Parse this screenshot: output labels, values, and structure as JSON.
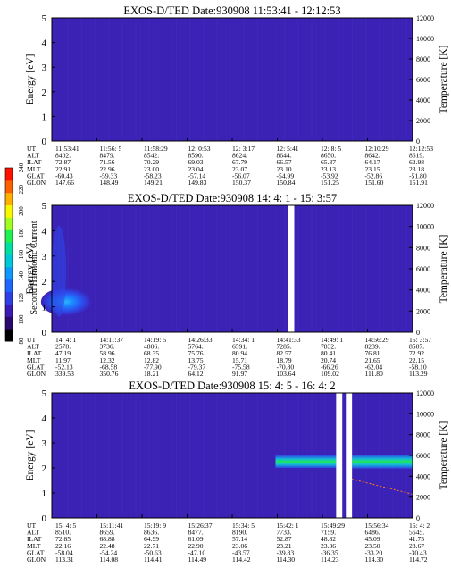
{
  "colorbar": {
    "label": "Second Harmonic Current",
    "ticks": [
      "80",
      "100",
      "120",
      "140",
      "160",
      "180",
      "200",
      "220",
      "240"
    ],
    "colors": [
      "#000000",
      "#2a0a6e",
      "#3b1bb6",
      "#2f3fe6",
      "#1d66ff",
      "#0f99ff",
      "#00c8d8",
      "#00e0a0",
      "#20f050",
      "#a0ff20",
      "#f8f800",
      "#ffb000",
      "#ff6000",
      "#ff1000"
    ]
  },
  "chart_data": [
    {
      "type": "heatmap",
      "title": "EXOS-D/TED   Date:930908   11:53:41 - 12:12:53",
      "ylabel": "Energy [eV]",
      "y2label": "Temperature [K]",
      "ylim": [
        0,
        5
      ],
      "y2lim": [
        0,
        12000
      ],
      "yticks": [
        "0",
        "1",
        "2",
        "3",
        "4",
        "5"
      ],
      "y2ticks": [
        "0",
        "2000",
        "4000",
        "6000",
        "8000",
        "10000",
        "12000"
      ],
      "background": "#3b22b5",
      "gaps": [],
      "features": [],
      "table": [
        {
          "label": "UT",
          "values": [
            "11:53:41",
            "11:56: 5",
            "11:58:29",
            "12: 0:53",
            "12: 3:17",
            "12: 5:41",
            "12: 8: 5",
            "12:10:29",
            "12:12:53"
          ]
        },
        {
          "label": "ALT",
          "values": [
            "8402.",
            "8479.",
            "8542.",
            "8590.",
            "8624.",
            "8644.",
            "8650.",
            "8642.",
            "8619."
          ]
        },
        {
          "label": "ILAT",
          "values": [
            "72.87",
            "71.56",
            "70.29",
            "69.03",
            "67.79",
            "66.57",
            "65.37",
            "64.17",
            "62.98"
          ]
        },
        {
          "label": "MLT",
          "values": [
            "22.91",
            "22.96",
            "23.00",
            "23.04",
            "23.07",
            "23.10",
            "23.13",
            "23.15",
            "23.18"
          ]
        },
        {
          "label": "GLAT",
          "values": [
            "-60.43",
            "-59.33",
            "-58.23",
            "-57.14",
            "-56.07",
            "-54.99",
            "-53.92",
            "-52.86",
            "-51.80"
          ]
        },
        {
          "label": "GLON",
          "values": [
            "147.66",
            "148.49",
            "149.21",
            "149.83",
            "150.37",
            "150.84",
            "151.25",
            "151.60",
            "151.91"
          ]
        }
      ]
    },
    {
      "type": "heatmap",
      "title": "EXOS-D/TED   Date:930908   14: 4: 1 - 15: 3:57",
      "ylabel": "Energy [eV]",
      "y2label": "Temperature [K]",
      "ylim": [
        0,
        5
      ],
      "y2lim": [
        0,
        12000
      ],
      "yticks": [
        "0",
        "1",
        "2",
        "3",
        "4",
        "5"
      ],
      "y2ticks": [
        "0",
        "2000",
        "4000",
        "6000",
        "8000",
        "10000",
        "12000"
      ],
      "background": "#3b22b5",
      "gaps": [
        [
          0.655,
          0.672
        ]
      ],
      "features": [
        {
          "kind": "blob",
          "x": 0.04,
          "y": 1.2,
          "rx": 0.07,
          "ry": 0.55
        },
        {
          "kind": "tail",
          "x": 0.02,
          "y": 2.4,
          "rx": 0.02,
          "ry": 1.8
        }
      ],
      "table": [
        {
          "label": "UT",
          "values": [
            "14: 4: 1",
            "14:11:37",
            "14:19: 5",
            "14:26:33",
            "14:34: 1",
            "14:41:33",
            "14:49: 1",
            "14:56:29",
            "15: 3:57"
          ]
        },
        {
          "label": "ALT",
          "values": [
            "2578.",
            "3736.",
            "4806.",
            "5764.",
            "6591.",
            "7285.",
            "7832.",
            "8239.",
            "8507."
          ]
        },
        {
          "label": "ILAT",
          "values": [
            "47.19",
            "58.96",
            "68.35",
            "75.76",
            "80.94",
            "82.57",
            "80.41",
            "76.81",
            "72.92"
          ]
        },
        {
          "label": "MLT",
          "values": [
            "11.97",
            "12.32",
            "12.82",
            "13.75",
            "15.71",
            "18.79",
            "20.74",
            "21.65",
            "22.15"
          ]
        },
        {
          "label": "GLAT",
          "values": [
            "-52.13",
            "-68.58",
            "-77.90",
            "-79.37",
            "-75.58",
            "-70.80",
            "-66.26",
            "-62.04",
            "-58.10"
          ]
        },
        {
          "label": "GLON",
          "values": [
            "339.53",
            "350.76",
            "18.21",
            "64.12",
            "91.97",
            "103.64",
            "109.02",
            "111.80",
            "113.29"
          ]
        }
      ]
    },
    {
      "type": "heatmap",
      "title": "EXOS-D/TED   Date:930908   15: 4: 5 - 16: 4: 2",
      "ylabel": "Energy [eV]",
      "y2label": "Temperature [K]",
      "ylim": [
        0,
        5
      ],
      "y2lim": [
        0,
        12000
      ],
      "yticks": [
        "0",
        "1",
        "2",
        "3",
        "4",
        "5"
      ],
      "y2ticks": [
        "0",
        "2000",
        "4000",
        "6000",
        "8000",
        "10000",
        "12000"
      ],
      "background": "#3b22b5",
      "gaps": [
        [
          0.788,
          0.805
        ],
        [
          0.815,
          0.832
        ]
      ],
      "features": [
        {
          "kind": "band",
          "x0": 0.62,
          "x1": 0.788,
          "y": 2.25,
          "h": 0.5
        },
        {
          "kind": "band",
          "x0": 0.832,
          "x1": 1.0,
          "y": 2.25,
          "h": 0.55
        },
        {
          "kind": "temp",
          "x0": 0.832,
          "x1": 1.0,
          "y0": 1.55,
          "y1": 0.95
        }
      ],
      "table": [
        {
          "label": "UT",
          "values": [
            "15: 4: 5",
            "15:11:41",
            "15:19: 9",
            "15:26:37",
            "15:34: 5",
            "15:42: 1",
            "15:49:29",
            "15:56:34",
            "16: 4: 2"
          ]
        },
        {
          "label": "ALT",
          "values": [
            "8510.",
            "8659.",
            "8636.",
            "8477.",
            "8190.",
            "7733.",
            "7159.",
            "6486.",
            "5645."
          ]
        },
        {
          "label": "ILAT",
          "values": [
            "72.85",
            "68.88",
            "64.99",
            "61.09",
            "57.14",
            "52.87",
            "48.82",
            "45.09",
            "41.75"
          ]
        },
        {
          "label": "MLT",
          "values": [
            "22.16",
            "22.48",
            "22.71",
            "22.90",
            "23.06",
            "23.21",
            "23.36",
            "23.50",
            "23.67"
          ]
        },
        {
          "label": "GLAT",
          "values": [
            "-58.04",
            "-54.24",
            "-50.63",
            "-47.10",
            "-43.57",
            "-39.83",
            "-36.35",
            "-33.20",
            "-30.43"
          ]
        },
        {
          "label": "GLON",
          "values": [
            "113.31",
            "114.08",
            "114.41",
            "114.49",
            "114.42",
            "114.30",
            "114.23",
            "114.30",
            "114.72"
          ]
        }
      ]
    }
  ]
}
